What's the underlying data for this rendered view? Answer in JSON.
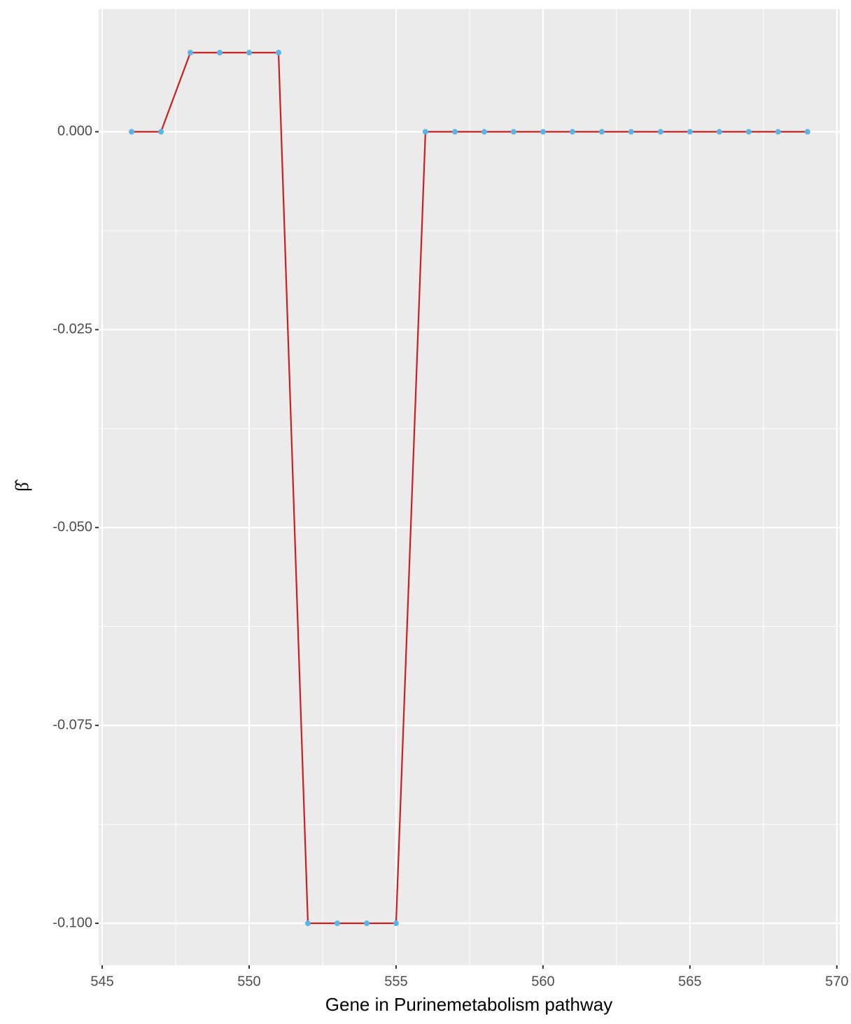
{
  "chart_data": {
    "type": "line",
    "x_label": "Gene in Purinemetabolism pathway",
    "y_label": "β̂",
    "x": [
      546,
      547,
      548,
      549,
      550,
      551,
      552,
      553,
      554,
      555,
      556,
      557,
      558,
      559,
      560,
      561,
      562,
      563,
      564,
      565,
      566,
      567,
      568,
      569
    ],
    "series": [
      {
        "color": "#c8201e",
        "marker_color": "#5bb4e5",
        "values": [
          0,
          0,
          0.01,
          0.01,
          0.01,
          0.01,
          -0.1,
          -0.1,
          -0.1,
          -0.1,
          0,
          0,
          0,
          0,
          0,
          0,
          0,
          0,
          0,
          0,
          0,
          0,
          0,
          0
        ]
      }
    ],
    "xlim": [
      544.88,
      570.1
    ],
    "xticks": [
      545,
      550,
      555,
      560,
      565,
      570
    ],
    "ylim": [
      -0.1053,
      0.0155
    ],
    "yticks": [
      {
        "value": -0.1,
        "label": "-0.100"
      },
      -0.075,
      {
        "value": -0.05,
        "label": "-0.050"
      },
      -0.025,
      {
        "value": 0,
        "label": "0.000"
      }
    ],
    "grid": true
  }
}
